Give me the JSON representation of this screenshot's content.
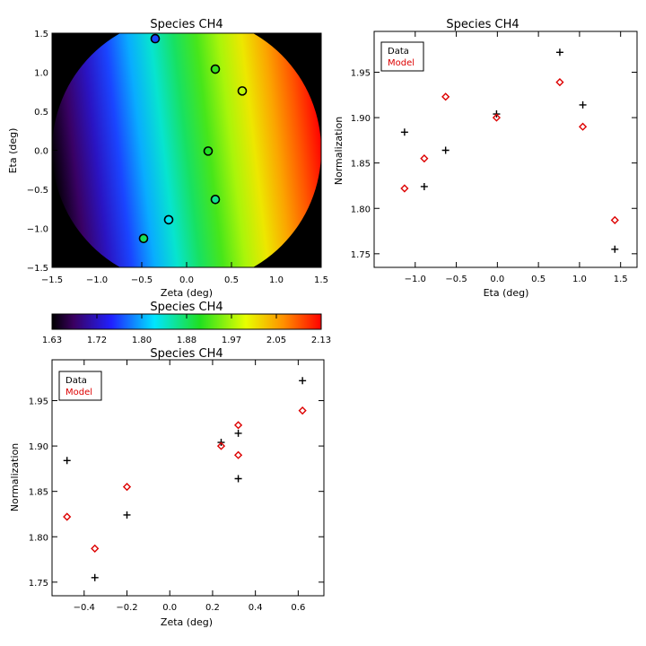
{
  "colors": {
    "data": "#000000",
    "model": "#dd0000",
    "frame": "#000000"
  },
  "colorbar": {
    "title": "Species CH4",
    "ticks": [
      "1.63",
      "1.72",
      "1.80",
      "1.88",
      "1.97",
      "2.05",
      "2.13"
    ],
    "range": [
      1.63,
      2.13
    ],
    "colormap": "rainbow"
  },
  "chart_data": [
    {
      "id": "map",
      "type": "heatmap",
      "title": "Species CH4",
      "xlabel": "Zeta (deg)",
      "ylabel": "Eta (deg)",
      "xlim": [
        -1.5,
        1.5
      ],
      "ylim": [
        -1.5,
        1.5
      ],
      "xticks": [
        "−1.5",
        "−1.0",
        "−0.5",
        "0.0",
        "0.5",
        "1.0",
        "1.5"
      ],
      "yticks": [
        "−1.5",
        "−1.0",
        "−0.5",
        "0.0",
        "0.5",
        "1.0",
        "1.5"
      ],
      "xtick_values": [
        -1.5,
        -1.0,
        -0.5,
        0.0,
        0.5,
        1.0,
        1.5
      ],
      "ytick_values": [
        -1.5,
        -1.0,
        -0.5,
        0.0,
        0.5,
        1.0,
        1.5
      ],
      "field_radius": 1.5,
      "gradient": {
        "min": 1.63,
        "max": 2.13,
        "coef_zeta": 0.1667,
        "coef_eta": -0.03,
        "center": 1.88
      },
      "points": [
        {
          "zeta": -0.35,
          "eta": 1.43,
          "value": 1.755
        },
        {
          "zeta": 0.32,
          "eta": 1.04,
          "value": 1.914
        },
        {
          "zeta": 0.62,
          "eta": 0.76,
          "value": 1.972
        },
        {
          "zeta": 0.24,
          "eta": -0.01,
          "value": 1.904
        },
        {
          "zeta": 0.32,
          "eta": -0.63,
          "value": 1.864
        },
        {
          "zeta": -0.2,
          "eta": -0.89,
          "value": 1.824
        },
        {
          "zeta": -0.48,
          "eta": -1.13,
          "value": 1.884
        }
      ]
    },
    {
      "id": "eta",
      "type": "scatter",
      "title": "Species CH4",
      "xlabel": "Eta (deg)",
      "ylabel": "Normalization",
      "xlim": [
        -1.5,
        1.7
      ],
      "ylim": [
        1.735,
        1.995
      ],
      "xticks": [
        "−1.0",
        "−0.5",
        "0.0",
        "0.5",
        "1.0",
        "1.5"
      ],
      "xtick_values": [
        -1.0,
        -0.5,
        0.0,
        0.5,
        1.0,
        1.5
      ],
      "yticks": [
        "1.75",
        "1.80",
        "1.85",
        "1.90",
        "1.95"
      ],
      "ytick_values": [
        1.75,
        1.8,
        1.85,
        1.9,
        1.95
      ],
      "legend": [
        "Data",
        "Model"
      ],
      "legend_position": "top-left",
      "series": [
        {
          "name": "Data",
          "marker": "plus",
          "x": [
            -1.13,
            -0.89,
            -0.63,
            -0.01,
            0.76,
            1.04,
            1.43
          ],
          "y": [
            1.884,
            1.824,
            1.864,
            1.904,
            1.972,
            1.914,
            1.755
          ]
        },
        {
          "name": "Model",
          "marker": "diamond",
          "x": [
            -1.13,
            -0.89,
            -0.63,
            -0.01,
            0.76,
            1.04,
            1.43
          ],
          "y": [
            1.822,
            1.855,
            1.923,
            1.9,
            1.939,
            1.89,
            1.787
          ]
        }
      ]
    },
    {
      "id": "zeta",
      "type": "scatter",
      "title": "Species CH4",
      "xlabel": "Zeta (deg)",
      "ylabel": "Normalization",
      "xlim": [
        -0.55,
        0.72
      ],
      "ylim": [
        1.735,
        1.995
      ],
      "xticks": [
        "−0.4",
        "−0.2",
        "0.0",
        "0.2",
        "0.4",
        "0.6"
      ],
      "xtick_values": [
        -0.4,
        -0.2,
        0.0,
        0.2,
        0.4,
        0.6
      ],
      "yticks": [
        "1.75",
        "1.80",
        "1.85",
        "1.90",
        "1.95"
      ],
      "ytick_values": [
        1.75,
        1.8,
        1.85,
        1.9,
        1.95
      ],
      "legend": [
        "Data",
        "Model"
      ],
      "legend_position": "top-left",
      "series": [
        {
          "name": "Data",
          "marker": "plus",
          "x": [
            -0.48,
            -0.35,
            -0.2,
            0.24,
            0.32,
            0.32,
            0.62
          ],
          "y": [
            1.884,
            1.755,
            1.824,
            1.904,
            1.914,
            1.864,
            1.972
          ]
        },
        {
          "name": "Model",
          "marker": "diamond",
          "x": [
            -0.48,
            -0.35,
            -0.2,
            0.24,
            0.32,
            0.32,
            0.62
          ],
          "y": [
            1.822,
            1.787,
            1.855,
            1.9,
            1.923,
            1.89,
            1.939
          ]
        }
      ]
    }
  ]
}
